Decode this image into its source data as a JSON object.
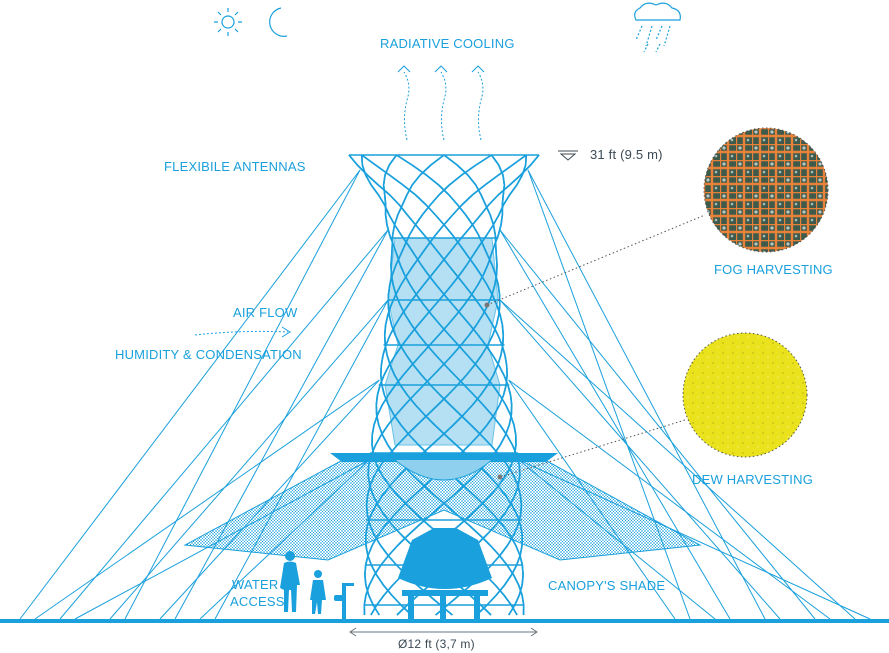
{
  "labels": {
    "radiative_cooling": "RADIATIVE COOLING",
    "flexible_antennas": "FLEXIBILE ANTENNAS",
    "height": "31 ft (9.5 m)",
    "fog_harvesting": "FOG HARVESTING",
    "air_flow": "AIR FLOW",
    "humidity_condensation": "HUMIDITY & CONDENSATION",
    "dew_harvesting": "DEW HARVESTING",
    "water_access_line1": "WATER",
    "water_access_line2": "ACCESS",
    "canopy_shade": "CANOPY'S SHADE",
    "diameter": "Ø12 ft (3,7 m)"
  },
  "colors": {
    "primary": "#1aa0dc",
    "fog_net": "#e8823a",
    "fog_bg": "#3d5a4a",
    "dew_mesh": "#e9e21c",
    "dark_text": "#3b4a55"
  },
  "icons": {
    "sun": "sun-icon",
    "moon": "moon-icon",
    "cloud_rain": "cloud-rain-icon"
  }
}
